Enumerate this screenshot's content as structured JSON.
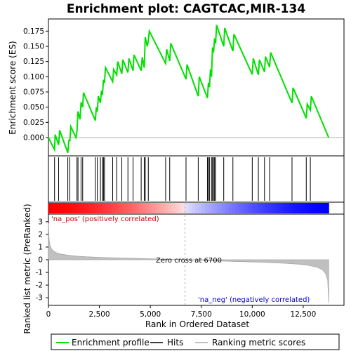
{
  "chart_data": {
    "type": "line",
    "title": "Enrichment plot: CAGTCAC,MIR-134",
    "top_panel": {
      "ylabel": "Enrichment score (ES)",
      "ylim": [
        -0.03,
        0.195
      ],
      "yticks": [
        0.0,
        0.025,
        0.05,
        0.075,
        0.1,
        0.125,
        0.15,
        0.175
      ],
      "ytick_labels": [
        "0.000",
        "0.025",
        "0.050",
        "0.075",
        "0.100",
        "0.125",
        "0.150",
        "0.175"
      ],
      "series": [
        {
          "name": "Enrichment profile",
          "color": "#00e000",
          "x": [
            0,
            300,
            330,
            500,
            550,
            950,
            1000,
            1050,
            1100,
            1350,
            1400,
            1450,
            1550,
            1600,
            1680,
            1720,
            2300,
            2350,
            2400,
            2450,
            2550,
            2600,
            2650,
            2700,
            2750,
            2800,
            3150,
            3200,
            3350,
            3400,
            3600,
            3650,
            3900,
            3950,
            4150,
            4200,
            4550,
            4600,
            4700,
            4750,
            4850,
            4900,
            4950,
            5750,
            5800,
            5950,
            6000,
            6750,
            6800,
            7350,
            7400,
            7800,
            7850,
            7900,
            7950,
            8000,
            8050,
            8100,
            8150,
            8200,
            8250,
            8600,
            8650,
            9050,
            9100,
            10000,
            10050,
            10300,
            10350,
            10600,
            10650,
            10850,
            10900,
            11950,
            12000,
            12650,
            12700,
            12850,
            12900,
            13750
          ],
          "y": [
            0.0,
            -0.02,
            0.005,
            -0.012,
            0.012,
            -0.025,
            -0.005,
            -0.005,
            0.018,
            0.0,
            0.01,
            0.043,
            0.03,
            0.058,
            0.05,
            0.074,
            0.028,
            0.05,
            0.043,
            0.068,
            0.057,
            0.077,
            0.07,
            0.095,
            0.09,
            0.115,
            0.092,
            0.112,
            0.103,
            0.125,
            0.105,
            0.128,
            0.107,
            0.13,
            0.11,
            0.136,
            0.11,
            0.132,
            0.115,
            0.165,
            0.15,
            0.16,
            0.175,
            0.122,
            0.145,
            0.126,
            0.155,
            0.096,
            0.12,
            0.068,
            0.1,
            0.065,
            0.09,
            0.083,
            0.112,
            0.1,
            0.148,
            0.14,
            0.163,
            0.155,
            0.185,
            0.15,
            0.18,
            0.142,
            0.17,
            0.104,
            0.13,
            0.103,
            0.128,
            0.108,
            0.133,
            0.116,
            0.14,
            0.057,
            0.082,
            0.032,
            0.055,
            0.045,
            0.068,
            0.0
          ]
        }
      ]
    },
    "hits": {
      "name": "Hits",
      "x": [
        300,
        500,
        950,
        1050,
        1400,
        1450,
        1600,
        1680,
        2300,
        2400,
        2550,
        2650,
        2700,
        2750,
        3150,
        3350,
        3600,
        3900,
        4150,
        4550,
        4700,
        4750,
        4900,
        5750,
        5950,
        6750,
        7350,
        7800,
        7850,
        7900,
        8000,
        8050,
        8100,
        8150,
        8200,
        8600,
        9050,
        10000,
        10300,
        10600,
        10850,
        11950,
        12650,
        12850
      ]
    },
    "bottom_panel": {
      "ylabel": "Ranked list metric (PreRanked)",
      "xlabel": "Rank in Ordered Dataset",
      "xlim": [
        0,
        14500
      ],
      "xticks": [
        0,
        2500,
        5000,
        7500,
        10000,
        12500
      ],
      "xtick_labels": [
        "0",
        "2,500",
        "5,000",
        "7,500",
        "10,000",
        "12,500"
      ],
      "ylim": [
        -3.6,
        3.6
      ],
      "yticks": [
        3,
        2,
        1,
        0,
        -1,
        -2,
        -3
      ],
      "ytick_labels": [
        "3",
        "2",
        "1",
        "0",
        "-1",
        "-2",
        "-3"
      ],
      "series": [
        {
          "name": "Ranking metric scores",
          "color": "#c0c0c0",
          "x": [
            0,
            30,
            80,
            150,
            250,
            400,
            600,
            900,
            1300,
            1800,
            2500,
            3500,
            4500,
            5500,
            6700,
            7500,
            8500,
            9500,
            10500,
            11500,
            12300,
            12800,
            13200,
            13450,
            13600,
            13700,
            13750
          ],
          "y": [
            2.9,
            1.6,
            1.1,
            0.85,
            0.68,
            0.55,
            0.45,
            0.37,
            0.3,
            0.24,
            0.19,
            0.14,
            0.1,
            0.05,
            0.0,
            -0.05,
            -0.1,
            -0.15,
            -0.2,
            -0.27,
            -0.35,
            -0.45,
            -0.6,
            -0.8,
            -1.1,
            -1.6,
            -3.4
          ]
        }
      ],
      "zero_cross": 6700,
      "annotations": {
        "zero_cross": "Zero cross at 6700",
        "pos": "'na_pos' (positively correlated)",
        "neg": "'na_neg' (negatively correlated)"
      }
    },
    "legend": {
      "placement": "bottom",
      "entries": [
        {
          "label": "Enrichment profile",
          "color": "#00e000"
        },
        {
          "label": "Hits",
          "color": "#000000"
        },
        {
          "label": "Ranking metric scores",
          "color": "#c0c0c0"
        }
      ]
    },
    "colors": {
      "pos": "#ff0000",
      "neg": "#0000ff",
      "pos_text": "#cc0000",
      "neg_text": "#0000cc"
    }
  }
}
